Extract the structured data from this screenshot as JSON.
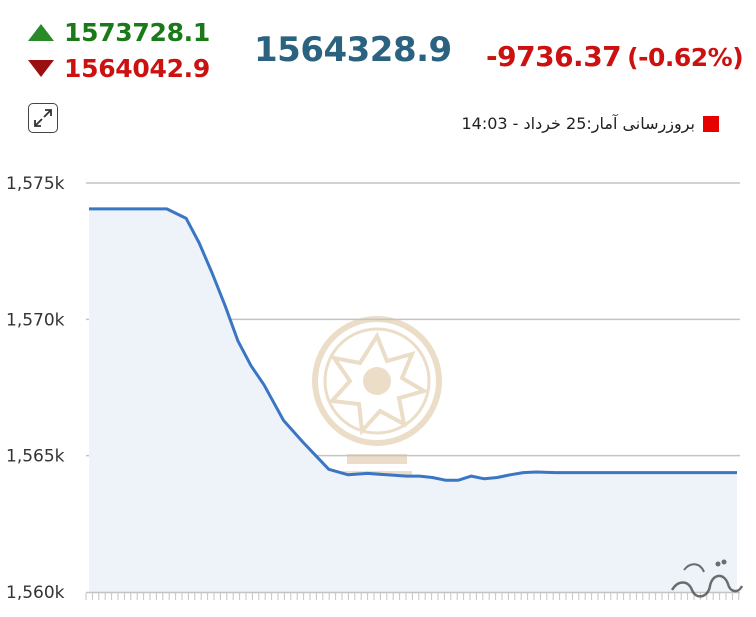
{
  "header": {
    "high_value": "1573728.1",
    "low_value": "1564042.9",
    "last_value": "1564328.9",
    "change_value": "-9736.37",
    "change_percent": "(-0.62%)",
    "up_color": "#1a7a1a",
    "down_color": "#cc1111",
    "last_color": "#2a6280"
  },
  "legend": {
    "text": "بروزرسانی آمار:25 خرداد - 14:03",
    "swatch_color": "#e60000"
  },
  "icons": {
    "expand": "expand-icon",
    "watermark": "exchange-emblem-watermark",
    "corner_logo": "site-logo"
  },
  "chart_data": {
    "type": "area",
    "title": "",
    "xlabel": "",
    "ylabel": "",
    "ylim": [
      1560000,
      1575000
    ],
    "y_ticks": [
      1560000,
      1565000,
      1570000,
      1575000
    ],
    "y_tick_labels": [
      "1,560k",
      "1,565k",
      "1,570k",
      "1,575k"
    ],
    "grid": true,
    "line_color": "#3a76c4",
    "fill_color": "#edf3f9",
    "series": [
      {
        "x": [
          0,
          4,
          8,
          12,
          15,
          17,
          19,
          21,
          23,
          25,
          27,
          30,
          33,
          35,
          37,
          40,
          43,
          46,
          49,
          51,
          53,
          55,
          57,
          59,
          61,
          63,
          65,
          67,
          69,
          72,
          75,
          78,
          81,
          84,
          87,
          90,
          93,
          96,
          100
        ],
        "y": [
          1574050,
          1574050,
          1574050,
          1574050,
          1573700,
          1572800,
          1571700,
          1570500,
          1569200,
          1568300,
          1567600,
          1566300,
          1565500,
          1565000,
          1564500,
          1564300,
          1564350,
          1564300,
          1564250,
          1564250,
          1564200,
          1564100,
          1564100,
          1564250,
          1564150,
          1564200,
          1564300,
          1564380,
          1564400,
          1564380,
          1564380,
          1564380,
          1564380,
          1564380,
          1564380,
          1564380,
          1564380,
          1564380,
          1564380
        ]
      }
    ]
  }
}
